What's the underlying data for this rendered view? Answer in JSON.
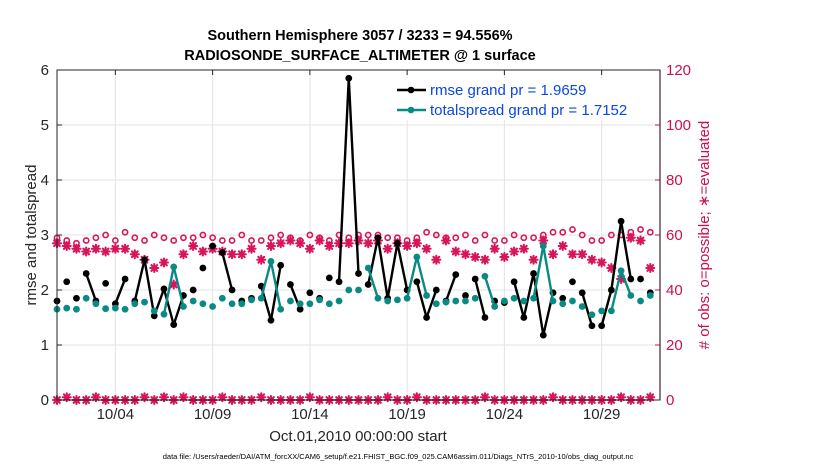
{
  "colors": {
    "rmse": "#000000",
    "totalspread": "#0a8a85",
    "obs": "#d8145a",
    "legend_text": "#0b47e0",
    "right_axis": "#cc0e52",
    "grid": "#e3e3e3"
  },
  "chart_data": {
    "type": "line",
    "title_line1": "Southern Hemisphere 3057 / 3233 = 94.556%",
    "title_line2": "RADIOSONDE_SURFACE_ALTIMETER @ 1 surface",
    "xlabel": "Oct.01,2010 00:00:00 start",
    "ylabel_left": "rmse and totalspread",
    "ylabel_right": "# of obs: o=possible; ∗=evaluated",
    "xlim": [
      1.0,
      32.0
    ],
    "ylim_left": [
      0,
      6
    ],
    "ylim_right": [
      0,
      120
    ],
    "x_ticks": [
      4,
      9,
      14,
      19,
      24,
      29
    ],
    "x_tick_labels": [
      "10/04",
      "10/09",
      "10/14",
      "10/19",
      "10/24",
      "10/29"
    ],
    "y_ticks_left": [
      "0",
      "1",
      "2",
      "3",
      "4",
      "5",
      "6"
    ],
    "y_ticks_right": [
      "0",
      "20",
      "40",
      "60",
      "80",
      "100",
      "120"
    ],
    "grid": true,
    "legend_position": "top-right",
    "x": [
      1.0,
      1.5,
      2.0,
      2.5,
      3.0,
      3.5,
      4.0,
      4.5,
      5.0,
      5.5,
      6.0,
      6.5,
      7.0,
      7.5,
      8.0,
      8.5,
      9.0,
      9.5,
      10.0,
      10.5,
      11.0,
      11.5,
      12.0,
      12.5,
      13.0,
      13.5,
      14.0,
      14.5,
      15.0,
      15.5,
      16.0,
      16.5,
      17.0,
      17.5,
      18.0,
      18.5,
      19.0,
      19.5,
      20.0,
      20.5,
      21.0,
      21.5,
      22.0,
      22.5,
      23.0,
      23.5,
      24.0,
      24.5,
      25.0,
      25.5,
      26.0,
      26.5,
      27.0,
      27.5,
      28.0,
      28.5,
      29.0,
      29.5,
      30.0,
      30.5,
      31.0,
      31.5
    ],
    "series": [
      {
        "name": "rmse",
        "legend": "rmse grand pr = 1.9659",
        "axis": "left",
        "values": [
          1.8,
          2.15,
          1.85,
          2.3,
          1.8,
          2.12,
          1.75,
          2.2,
          1.8,
          2.55,
          1.53,
          2.02,
          1.37,
          1.9,
          2.0,
          2.4,
          2.8,
          2.68,
          2.0,
          1.8,
          1.85,
          2.07,
          1.45,
          2.45,
          2.1,
          1.65,
          1.95,
          1.85,
          2.22,
          2.15,
          5.85,
          2.3,
          2.1,
          2.95,
          1.85,
          2.85,
          2.0,
          2.15,
          1.5,
          2.0,
          1.8,
          2.28,
          1.9,
          2.2,
          1.5,
          1.8,
          1.77,
          2.15,
          1.5,
          2.3,
          1.18,
          1.95,
          1.85,
          2.15,
          1.95,
          1.35,
          1.35,
          2.0,
          3.25,
          2.2,
          2.2,
          1.95
        ]
      },
      {
        "name": "totalspread",
        "legend": "totalspread grand pr = 1.7152",
        "axis": "left",
        "values": [
          1.65,
          1.67,
          1.65,
          1.85,
          1.75,
          1.66,
          1.67,
          1.65,
          1.75,
          1.78,
          1.62,
          1.56,
          2.42,
          1.7,
          1.8,
          1.75,
          1.7,
          1.85,
          1.75,
          1.75,
          1.82,
          1.85,
          2.52,
          1.65,
          1.8,
          1.75,
          1.75,
          1.82,
          1.75,
          1.8,
          2.0,
          2.0,
          2.4,
          1.85,
          1.8,
          1.82,
          1.85,
          2.6,
          1.9,
          1.75,
          1.78,
          1.8,
          1.8,
          1.85,
          2.25,
          1.7,
          1.8,
          1.85,
          1.8,
          1.85,
          2.8,
          1.8,
          1.75,
          1.8,
          1.7,
          1.55,
          1.62,
          1.62,
          2.35,
          1.9,
          1.8,
          1.9
        ]
      },
      {
        "name": "possible",
        "axis": "right",
        "marker": "o",
        "values": [
          59,
          58,
          57,
          58,
          59,
          60,
          58,
          61,
          59,
          58,
          60,
          59,
          58,
          59,
          59,
          60,
          59,
          58,
          58,
          60,
          58,
          58,
          59,
          60,
          59,
          58,
          60,
          59,
          58,
          60,
          59,
          60,
          60,
          60,
          59,
          59,
          58,
          59,
          61,
          60,
          59,
          59,
          60,
          58,
          60,
          58,
          58,
          60,
          59,
          59,
          60,
          61,
          61,
          62,
          60,
          58,
          58,
          60,
          60,
          61,
          62,
          61
        ]
      },
      {
        "name": "evaluated",
        "axis": "right",
        "marker": "*",
        "values": [
          57,
          56,
          55,
          54,
          55,
          54,
          55,
          55,
          53,
          51,
          48,
          50,
          42,
          53,
          56,
          54,
          55,
          54,
          53,
          53,
          55,
          51,
          56,
          57,
          58,
          57,
          55,
          58,
          56,
          57,
          57,
          58,
          57,
          58,
          55,
          57,
          56,
          57,
          55,
          51,
          58,
          54,
          53,
          52,
          51,
          55,
          52,
          54,
          55,
          51,
          58,
          53,
          56,
          53,
          53,
          51,
          50,
          48,
          44,
          59,
          58,
          48
        ]
      },
      {
        "name": "evaluated-bottom",
        "axis": "right",
        "marker": "*",
        "values": [
          0,
          1,
          0,
          0,
          1,
          0,
          0,
          0,
          0,
          1,
          0,
          1,
          0,
          1,
          0,
          0,
          0,
          1,
          0,
          0,
          0,
          1,
          0,
          0,
          0,
          0,
          1,
          0,
          0,
          0,
          0,
          0,
          0,
          0,
          1,
          0,
          0,
          1,
          0,
          0,
          0,
          0,
          0,
          0,
          1,
          0,
          0,
          0,
          0,
          0,
          0,
          1,
          0,
          0,
          0,
          0,
          0,
          0,
          1,
          0,
          0,
          1
        ]
      }
    ]
  },
  "footer": "data file: /Users/raeder/DAI/ATM_forcXX/CAM6_setup/f.e21.FHIST_BGC.f09_025.CAM6assim.011/Diags_NTrS_2010-10/obs_diag_output.nc"
}
